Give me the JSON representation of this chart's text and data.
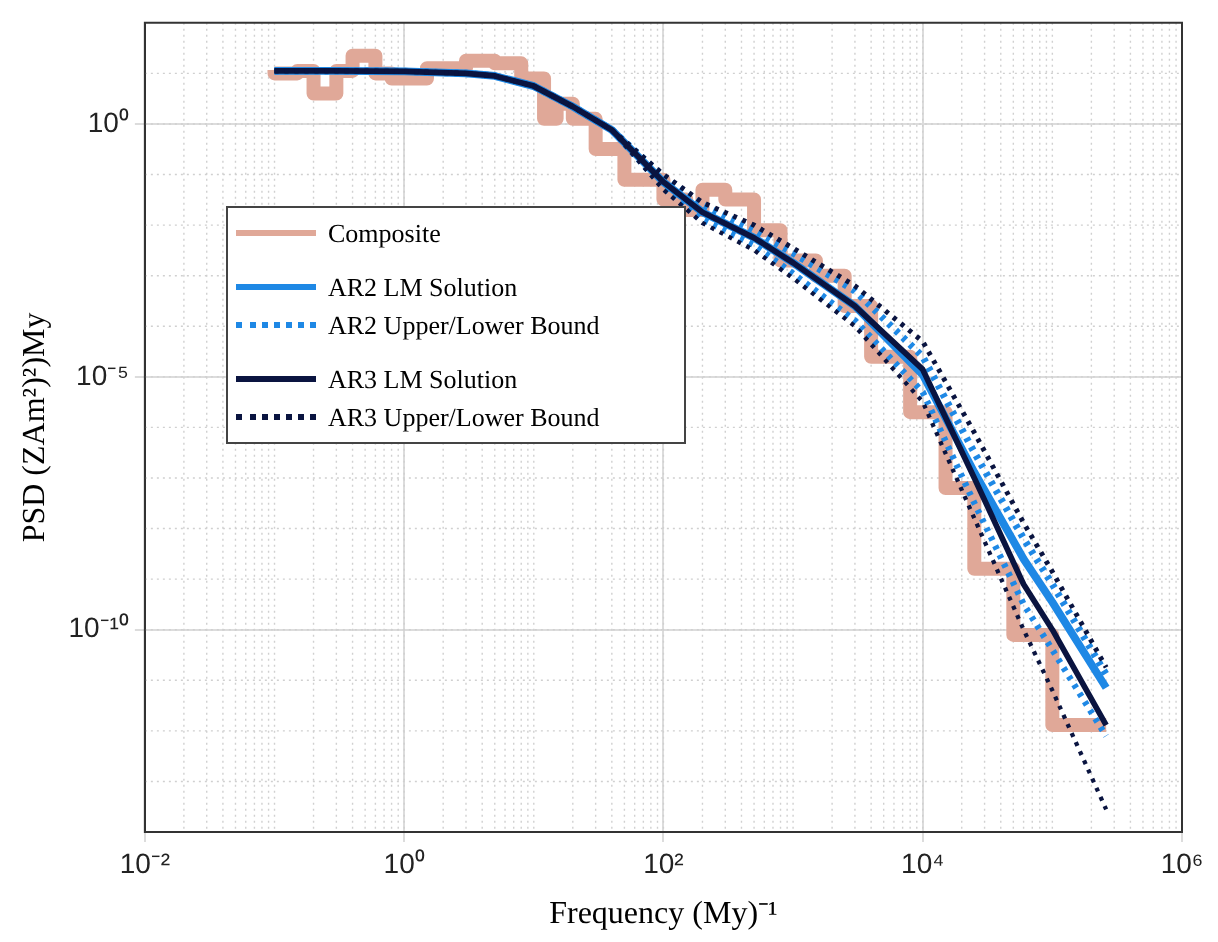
{
  "chart_data": {
    "type": "line",
    "xlabel": "Frequency (My)⁻¹",
    "ylabel": "PSD (ZAm²)²)My",
    "log": "xy",
    "grid": true,
    "legend": "left",
    "marker": "none",
    "xlim": [
      0.01,
      1000000
    ],
    "xticks": [
      {
        "value": 0.01,
        "label": "10⁻²"
      },
      {
        "value": 1,
        "label": "10⁰"
      },
      {
        "value": 100,
        "label": "10²"
      },
      {
        "value": 10000,
        "label": "10⁴"
      },
      {
        "value": 1000000,
        "label": "10⁶"
      }
    ],
    "ylim": [
      1e-14,
      100
    ],
    "yticks": [
      {
        "value": 1e-10,
        "label": "10⁻¹⁰"
      },
      {
        "value": 1e-05,
        "label": "10⁻⁵"
      },
      {
        "value": 1,
        "label": "10⁰"
      }
    ],
    "x": [
      0.1,
      0.3,
      1,
      3,
      5,
      10,
      20,
      40,
      100,
      200,
      500,
      1000,
      3000,
      10000,
      25000,
      60000,
      100000,
      260000
    ],
    "series": [
      {
        "name": "Composite",
        "type": "step",
        "color": "#e0a898",
        "x": [
          0.1,
          0.15,
          0.2,
          0.3,
          0.4,
          0.6,
          0.8,
          1.5,
          3,
          5,
          8,
          12,
          15,
          20,
          30,
          50,
          100,
          150,
          200,
          300,
          500,
          800,
          1000,
          1500,
          2500,
          4000,
          8000,
          15000,
          25000,
          50000,
          100000,
          260000
        ],
        "values": [
          11.7,
          10,
          11.2,
          4,
          11.2,
          22.4,
          10,
          7.9,
          12.6,
          17.8,
          15.8,
          7.9,
          1.26,
          2.5,
          1.26,
          0.32,
          0.079,
          0.032,
          0.02,
          0.05,
          0.032,
          0.0079,
          0.002,
          0.002,
          0.001,
          0.00025,
          2.5e-05,
          2e-06,
          6.3e-08,
          1.6e-09,
          7.9e-11,
          1.3e-12
        ]
      },
      {
        "name": "AR2 LM Solution",
        "color": "#1e88e5",
        "line_style": "solid",
        "values": [
          11.2,
          11.2,
          11,
          10,
          8.9,
          5.6,
          2.2,
          0.76,
          0.071,
          0.018,
          0.0056,
          0.0018,
          0.00025,
          1.1e-05,
          1.3e-07,
          2.5e-09,
          3.5e-10,
          7.1e-12
        ]
      },
      {
        "name": "AR2 Upper/Lower Bound",
        "color": "#1e88e5",
        "line_style": "dotted",
        "values": [
          11.2,
          11.2,
          11,
          10,
          8.9,
          5.6,
          2.2,
          0.76,
          0.089,
          0.025,
          0.0079,
          0.0028,
          0.0005,
          2.5e-05,
          3.2e-07,
          6.3e-09,
          7.9e-10,
          1.3e-11
        ]
      },
      {
        "color": "#1e88e5",
        "line_style": "dotted",
        "values": [
          11.2,
          11.2,
          11,
          10,
          8.9,
          5.6,
          2.2,
          0.76,
          0.056,
          0.013,
          0.004,
          0.0011,
          0.00013,
          5e-06,
          3.2e-08,
          3.2e-10,
          4e-11,
          7.9e-13
        ]
      },
      {
        "name": "AR3 LM Solution",
        "color": "#0a1440",
        "line_style": "solid",
        "values": [
          11.2,
          11.2,
          11,
          10,
          8.9,
          5.6,
          2.2,
          0.76,
          0.071,
          0.018,
          0.0056,
          0.0018,
          0.00025,
          1.4e-05,
          1e-07,
          7.9e-10,
          1e-10,
          1.3e-12
        ]
      },
      {
        "name": "AR3 Upper/Lower Bound",
        "color": "#0a1440",
        "line_style": "dotted",
        "values": [
          11.2,
          11.2,
          11,
          10,
          8.9,
          5.6,
          2.2,
          0.76,
          0.1,
          0.028,
          0.01,
          0.0035,
          0.00063,
          5e-05,
          7.9e-07,
          1.3e-08,
          1.4e-09,
          1.8e-11
        ]
      },
      {
        "color": "#0a1440",
        "line_style": "dotted",
        "values": [
          11.2,
          11.2,
          11,
          10,
          8.9,
          5.6,
          2.2,
          0.76,
          0.05,
          0.011,
          0.0032,
          0.00089,
          0.0001,
          3.2e-06,
          1.6e-08,
          1e-10,
          6.3e-12,
          2.8e-14
        ]
      }
    ]
  }
}
